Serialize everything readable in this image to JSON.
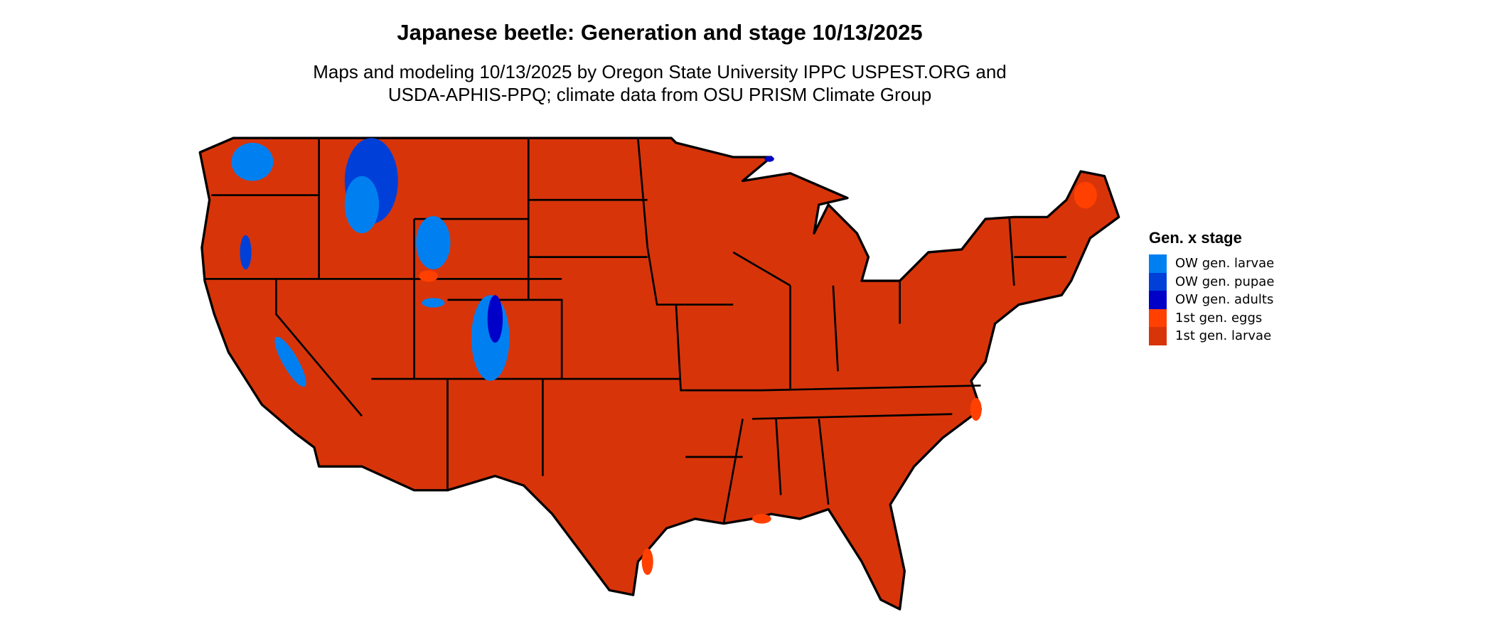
{
  "title": "Japanese beetle: Generation and stage 10/13/2025",
  "subtitle_line1": "Maps and modeling 10/13/2025 by Oregon State University IPPC USPEST.ORG and",
  "subtitle_line2": "USDA-APHIS-PPQ; climate data from OSU PRISM Climate Group",
  "legend": {
    "title": "Gen. x stage",
    "items": [
      {
        "label": "OW gen. larvae",
        "color": "#0080f0"
      },
      {
        "label": "OW gen. pupae",
        "color": "#0040d8"
      },
      {
        "label": "OW gen. adults",
        "color": "#0000c8"
      },
      {
        "label": "1st gen. eggs",
        "color": "#ff4000"
      },
      {
        "label": "1st gen. larvae",
        "color": "#d8340a"
      }
    ]
  },
  "map": {
    "region": "Contiguous United States",
    "dominant_class": "1st gen. larvae",
    "border_color": "#000000"
  }
}
